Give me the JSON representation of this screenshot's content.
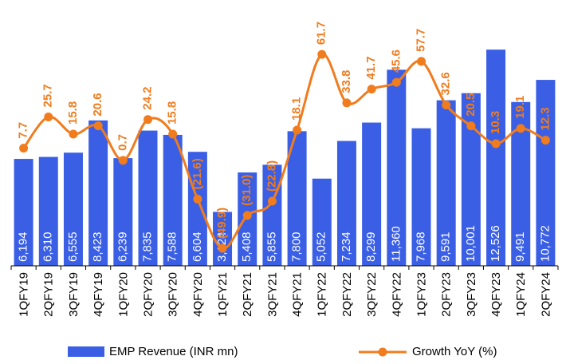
{
  "chart_data": {
    "type": "bar-line",
    "categories": [
      "1QFY19",
      "2QFY19",
      "3QFY19",
      "4QFY19",
      "1QFY20",
      "2QFY20",
      "3QFY20",
      "4QFY20",
      "1QFY21",
      "2QFY21",
      "3QFY21",
      "4QFY21",
      "1QFY22",
      "2QFY22",
      "3QFY22",
      "4QFY22",
      "1QFY23",
      "2QFY23",
      "3QFY23",
      "4QFY23",
      "1QFY24",
      "2QFY24"
    ],
    "series": [
      {
        "name": "EMP Revenue (INR mn)",
        "type": "bar",
        "color": "#3a5fe5",
        "values": [
          6194,
          6310,
          6555,
          8423,
          6239,
          7835,
          7588,
          6604,
          3124,
          5408,
          5855,
          7800,
          5052,
          7234,
          8299,
          11360,
          7968,
          9591,
          10001,
          12526,
          9491,
          10772
        ],
        "value_labels": [
          "6,194",
          "6,310",
          "6,555",
          "8,423",
          "6,239",
          "7,835",
          "7,588",
          "6,604",
          "3,124",
          "5,408",
          "5,855",
          "7,800",
          "5,052",
          "7,234",
          "8,299",
          "11,360",
          "7,968",
          "9,591",
          "10,001",
          "12,526",
          "9,491",
          "10,772"
        ]
      },
      {
        "name": "Growth YoY (%)",
        "type": "line",
        "axis": "y2",
        "color": "#f07c1e",
        "values": [
          7.7,
          25.7,
          15.8,
          20.6,
          0.7,
          24.2,
          15.8,
          -21.6,
          -49.9,
          -31.0,
          -22.8,
          18.1,
          61.7,
          33.8,
          41.7,
          45.6,
          57.7,
          32.6,
          20.5,
          10.3,
          19.1,
          12.3
        ],
        "value_labels": [
          "7.7",
          "25.7",
          "15.8",
          "20.6",
          "0.7",
          "24.2",
          "15.8",
          "(21.6)",
          "(49.9)",
          "(31.0)",
          "(22.8)",
          "18.1",
          "61.7",
          "33.8",
          "41.7",
          "45.6",
          "57.7",
          "32.6",
          "20.5",
          "10.3",
          "19.1",
          "12.3"
        ]
      }
    ],
    "ylim": [
      0,
      15400
    ],
    "y2lim": [
      -60,
      93
    ],
    "legend": "bottom"
  }
}
